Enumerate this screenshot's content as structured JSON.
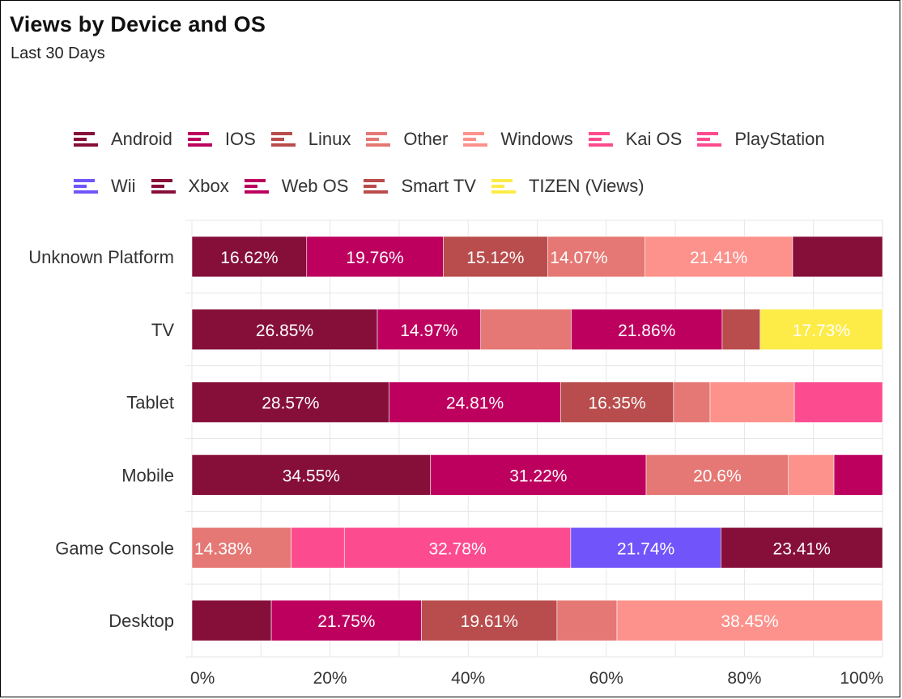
{
  "header": {
    "title": "Views by Device and OS",
    "subtitle": "Last 30 Days"
  },
  "chart_data": {
    "type": "bar",
    "orientation": "horizontal",
    "stacked": "percent",
    "title": "Views by Device and OS",
    "subtitle": "Last 30 Days",
    "xlabel": "",
    "ylabel": "",
    "xlim": [
      0,
      100
    ],
    "x_ticks": [
      "0%",
      "20%",
      "40%",
      "60%",
      "80%",
      "100%"
    ],
    "grid": true,
    "legend_position": "top",
    "categories": [
      "Unknown Platform",
      "TV",
      "Tablet",
      "Mobile",
      "Game Console",
      "Desktop"
    ],
    "legend": [
      {
        "name": "Android",
        "color": "#860f3a"
      },
      {
        "name": "IOS",
        "color": "#bd005e"
      },
      {
        "name": "Linux",
        "color": "#b94c4c"
      },
      {
        "name": "Other",
        "color": "#e57874"
      },
      {
        "name": "Windows",
        "color": "#fd918b"
      },
      {
        "name": "Kai OS",
        "color": "#fd4b8f"
      },
      {
        "name": "PlayStation",
        "color": "#fd4b8f"
      },
      {
        "name": "Wii",
        "color": "#7155fa"
      },
      {
        "name": "Xbox",
        "color": "#860f3a"
      },
      {
        "name": "Web OS",
        "color": "#bd005e"
      },
      {
        "name": "Smart TV",
        "color": "#b94c4c"
      },
      {
        "name": "TIZEN (Views)",
        "color": "#fdeb48"
      }
    ],
    "rows": [
      {
        "category": "Unknown Platform",
        "segments": [
          {
            "series": "Android",
            "value": 16.62,
            "label": "16.62%"
          },
          {
            "series": "IOS",
            "value": 19.76,
            "label": "19.76%"
          },
          {
            "series": "Linux",
            "value": 15.12,
            "label": "15.12%"
          },
          {
            "series": "Other",
            "value": 14.07,
            "label": "14.07%"
          },
          {
            "series": "Windows",
            "value": 21.41,
            "label": "21.41%"
          },
          {
            "series": "Xbox",
            "value": 13.02,
            "label": ""
          }
        ]
      },
      {
        "category": "TV",
        "segments": [
          {
            "series": "Android",
            "value": 26.85,
            "label": "26.85%"
          },
          {
            "series": "IOS",
            "value": 14.97,
            "label": "14.97%"
          },
          {
            "series": "Other",
            "value": 13.1,
            "label": ""
          },
          {
            "series": "Web OS",
            "value": 21.86,
            "label": "21.86%"
          },
          {
            "series": "Smart TV",
            "value": 5.49,
            "label": ""
          },
          {
            "series": "TIZEN (Views)",
            "value": 17.73,
            "label": "17.73%"
          }
        ]
      },
      {
        "category": "Tablet",
        "segments": [
          {
            "series": "Android",
            "value": 28.57,
            "label": "28.57%"
          },
          {
            "series": "IOS",
            "value": 24.81,
            "label": "24.81%"
          },
          {
            "series": "Linux",
            "value": 16.35,
            "label": "16.35%"
          },
          {
            "series": "Other",
            "value": 5.3,
            "label": ""
          },
          {
            "series": "Windows",
            "value": 12.2,
            "label": ""
          },
          {
            "series": "Kai OS",
            "value": 12.77,
            "label": ""
          }
        ]
      },
      {
        "category": "Mobile",
        "segments": [
          {
            "series": "Android",
            "value": 34.55,
            "label": "34.55%"
          },
          {
            "series": "IOS",
            "value": 31.22,
            "label": "31.22%"
          },
          {
            "series": "Other",
            "value": 20.6,
            "label": "20.6%"
          },
          {
            "series": "Windows",
            "value": 6.6,
            "label": ""
          },
          {
            "series": "Web OS",
            "value": 7.03,
            "label": ""
          }
        ]
      },
      {
        "category": "Game Console",
        "segments": [
          {
            "series": "Other",
            "value": 14.38,
            "label": "14.38%"
          },
          {
            "series": "Kai OS",
            "value": 7.69,
            "label": ""
          },
          {
            "series": "PlayStation",
            "value": 32.78,
            "label": "32.78%"
          },
          {
            "series": "Wii",
            "value": 21.74,
            "label": "21.74%"
          },
          {
            "series": "Xbox",
            "value": 23.41,
            "label": "23.41%"
          }
        ]
      },
      {
        "category": "Desktop",
        "segments": [
          {
            "series": "Android",
            "value": 11.5,
            "label": ""
          },
          {
            "series": "IOS",
            "value": 21.75,
            "label": "21.75%"
          },
          {
            "series": "Linux",
            "value": 19.61,
            "label": "19.61%"
          },
          {
            "series": "Other",
            "value": 8.69,
            "label": ""
          },
          {
            "series": "Windows",
            "value": 38.45,
            "label": "38.45%"
          }
        ]
      }
    ]
  }
}
